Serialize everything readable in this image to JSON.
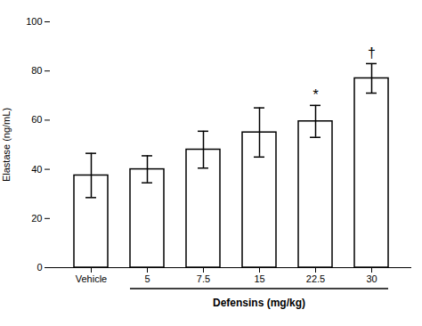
{
  "chart_data": {
    "type": "bar",
    "categories": [
      "Vehicle",
      "5",
      "7.5",
      "15",
      "22.5",
      "30"
    ],
    "values": [
      37.5,
      40.0,
      48.0,
      55.0,
      59.5,
      77.0
    ],
    "errors": [
      9.0,
      5.5,
      7.5,
      10.0,
      6.5,
      6.0
    ],
    "color": "#ffffff",
    "ylabel": "Elastase (ng/mL)",
    "xlabel": "Defensins (mg/kg)",
    "ylim": [
      0,
      100
    ],
    "yticks": [
      0,
      20,
      40,
      60,
      80,
      100
    ],
    "grid": false,
    "annotations": [
      {
        "category": "22.5",
        "text": "*"
      },
      {
        "category": "30",
        "text": "†"
      }
    ]
  }
}
